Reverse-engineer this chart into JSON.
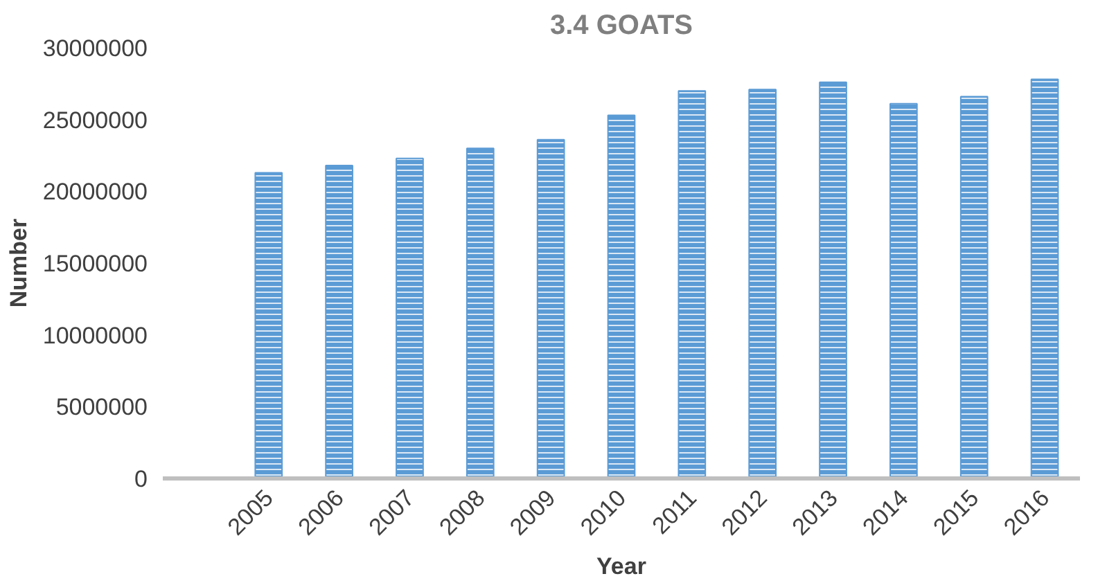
{
  "chart_data": {
    "type": "bar",
    "title": "3.4 GOATS",
    "xlabel": "Year",
    "ylabel": "Number",
    "categories": [
      null,
      "2005",
      "2006",
      "2007",
      "2008",
      "2009",
      "2010",
      "2011",
      "2012",
      "2013",
      "2014",
      "2015",
      "2016"
    ],
    "values": [
      null,
      21300000,
      21800000,
      22300000,
      23000000,
      23600000,
      25300000,
      27000000,
      27100000,
      27600000,
      26100000,
      26600000,
      27800000
    ],
    "color": "#5b9bd5",
    "ylim": [
      0,
      30000000
    ],
    "yticks": [
      0,
      5000000,
      10000000,
      15000000,
      20000000,
      25000000,
      30000000
    ],
    "grid": false
  }
}
